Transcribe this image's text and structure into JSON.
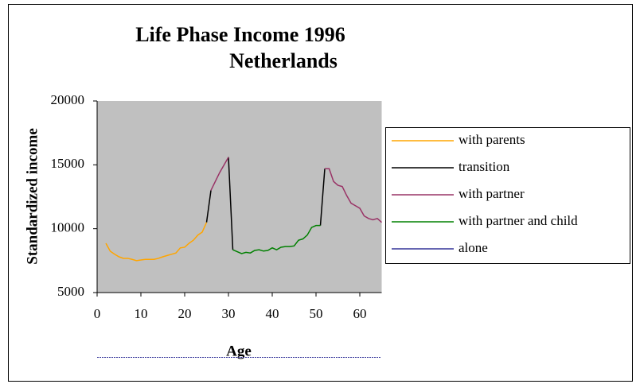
{
  "chart_data": {
    "type": "line",
    "title": [
      "Life Phase Income 1996",
      "Netherlands"
    ],
    "xlabel": "Age",
    "ylabel": "Standardized income",
    "xlim": [
      0,
      65
    ],
    "xticks": [
      0,
      10,
      20,
      30,
      40,
      50,
      60
    ],
    "ylim": [
      5000,
      20000
    ],
    "yticks": [
      5000,
      10000,
      15000,
      20000
    ],
    "background": "#c0c0c0",
    "x": [
      2,
      3,
      4,
      5,
      6,
      7,
      8,
      9,
      10,
      11,
      12,
      13,
      14,
      15,
      16,
      17,
      18,
      19,
      20,
      21,
      22,
      23,
      24,
      25,
      26,
      27,
      28,
      29,
      30,
      31,
      32,
      33,
      34,
      35,
      36,
      37,
      38,
      39,
      40,
      41,
      42,
      43,
      44,
      45,
      46,
      47,
      48,
      49,
      50,
      51,
      52,
      53,
      54,
      55,
      56,
      57,
      58,
      59,
      60,
      61,
      62,
      63,
      64,
      65
    ],
    "series": [
      {
        "name": "with parents",
        "color": "#ffa500",
        "values": [
          8860,
          8240,
          8000,
          7800,
          7680,
          7680,
          7600,
          7500,
          7550,
          7600,
          7600,
          7600,
          7680,
          7800,
          7900,
          8000,
          8100,
          8500,
          8550,
          8860,
          9100,
          9500,
          9730,
          10500,
          null,
          null,
          null,
          null,
          null,
          null,
          null,
          null,
          null,
          null,
          null,
          null,
          null,
          null,
          null,
          null,
          null,
          null,
          null,
          null,
          null,
          null,
          null,
          null,
          null,
          null,
          null,
          null,
          null,
          null,
          null,
          null,
          null,
          null,
          null,
          null,
          null,
          null,
          null,
          null
        ]
      },
      {
        "name": "transition",
        "color": "#000000",
        "values": [
          null,
          null,
          null,
          null,
          null,
          null,
          null,
          null,
          null,
          null,
          null,
          null,
          null,
          null,
          null,
          null,
          null,
          null,
          null,
          null,
          null,
          null,
          null,
          10500,
          13000,
          null,
          null,
          null,
          15600,
          8350,
          null,
          null,
          null,
          null,
          null,
          null,
          null,
          null,
          null,
          null,
          null,
          null,
          null,
          null,
          null,
          null,
          null,
          null,
          null,
          10250,
          14700,
          null,
          null,
          null,
          null,
          null,
          null,
          null,
          null,
          null,
          null,
          null,
          null,
          null
        ]
      },
      {
        "name": "with partner",
        "color": "#993366",
        "values": [
          null,
          null,
          null,
          null,
          null,
          null,
          null,
          null,
          null,
          null,
          null,
          null,
          null,
          null,
          null,
          null,
          null,
          null,
          null,
          null,
          null,
          null,
          null,
          null,
          13000,
          13700,
          14400,
          15000,
          15600,
          null,
          null,
          null,
          null,
          null,
          null,
          null,
          null,
          null,
          null,
          null,
          null,
          null,
          null,
          null,
          null,
          null,
          null,
          null,
          null,
          null,
          14700,
          14700,
          13700,
          13400,
          13300,
          12600,
          12000,
          11800,
          11600,
          11000,
          10800,
          10700,
          10800,
          10500
        ]
      },
      {
        "name": "with partner and child",
        "color": "#008000",
        "values": [
          null,
          null,
          null,
          null,
          null,
          null,
          null,
          null,
          null,
          null,
          null,
          null,
          null,
          null,
          null,
          null,
          null,
          null,
          null,
          null,
          null,
          null,
          null,
          null,
          null,
          null,
          null,
          null,
          null,
          8350,
          8200,
          8050,
          8150,
          8100,
          8300,
          8350,
          8250,
          8300,
          8500,
          8350,
          8550,
          8600,
          8600,
          8650,
          9100,
          9200,
          9500,
          10100,
          10250,
          10250,
          null,
          null,
          null,
          null,
          null,
          null,
          null,
          null,
          null,
          null,
          null,
          null,
          null,
          null
        ]
      },
      {
        "name": "alone",
        "color": "#333399",
        "values": [
          null,
          null,
          null,
          null,
          null,
          null,
          null,
          null,
          null,
          null,
          null,
          null,
          null,
          null,
          null,
          null,
          null,
          null,
          null,
          null,
          null,
          null,
          null,
          null,
          null,
          null,
          null,
          null,
          null,
          null,
          null,
          null,
          null,
          null,
          null,
          null,
          null,
          null,
          null,
          null,
          null,
          null,
          null,
          null,
          null,
          null,
          null,
          null,
          null,
          null,
          null,
          null,
          null,
          null,
          null,
          null,
          null,
          null,
          null,
          null,
          null,
          null,
          null,
          null
        ]
      }
    ]
  }
}
